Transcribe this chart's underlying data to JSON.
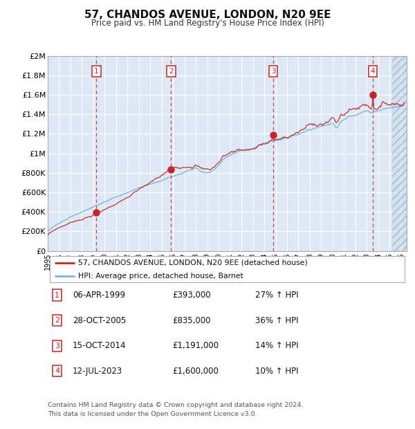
{
  "title": "57, CHANDOS AVENUE, LONDON, N20 9EE",
  "subtitle": "Price paid vs. HM Land Registry's House Price Index (HPI)",
  "legend_line1": "57, CHANDOS AVENUE, LONDON, N20 9EE (detached house)",
  "legend_line2": "HPI: Average price, detached house, Barnet",
  "footer_line1": "Contains HM Land Registry data © Crown copyright and database right 2024.",
  "footer_line2": "This data is licensed under the Open Government Licence v3.0.",
  "xmin": 1995.0,
  "xmax": 2026.5,
  "ymin": 0,
  "ymax": 2000000,
  "yticks": [
    0,
    200000,
    400000,
    600000,
    800000,
    1000000,
    1200000,
    1400000,
    1600000,
    1800000,
    2000000
  ],
  "ytick_labels": [
    "£0",
    "£200K",
    "£400K",
    "£600K",
    "£800K",
    "£1M",
    "£1.2M",
    "£1.4M",
    "£1.6M",
    "£1.8M",
    "£2M"
  ],
  "xtick_years": [
    1995,
    1996,
    1997,
    1998,
    1999,
    2000,
    2001,
    2002,
    2003,
    2004,
    2005,
    2006,
    2007,
    2008,
    2009,
    2010,
    2011,
    2012,
    2013,
    2014,
    2015,
    2016,
    2017,
    2018,
    2019,
    2020,
    2021,
    2022,
    2023,
    2024,
    2025,
    2026
  ],
  "sales": [
    {
      "num": 1,
      "date": "06-APR-1999",
      "year": 1999.27,
      "price": 393000,
      "pct": "27%",
      "dir": "↑"
    },
    {
      "num": 2,
      "date": "28-OCT-2005",
      "year": 2005.83,
      "price": 835000,
      "pct": "36%",
      "dir": "↑"
    },
    {
      "num": 3,
      "date": "15-OCT-2014",
      "year": 2014.79,
      "price": 1191000,
      "pct": "14%",
      "dir": "↑"
    },
    {
      "num": 4,
      "date": "12-JUL-2023",
      "year": 2023.53,
      "price": 1600000,
      "pct": "10%",
      "dir": "↑"
    }
  ],
  "hpi_color": "#7ab8d9",
  "price_color": "#cc2222",
  "vline_color": "#cc2222",
  "bg_color": "#dce8f5",
  "grid_color": "#ffffff",
  "label_box_color": "#cc2222",
  "hatch_x_start": 2025.25
}
